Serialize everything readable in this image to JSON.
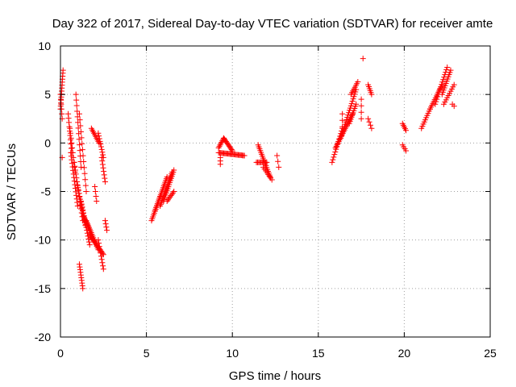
{
  "chart_data": {
    "type": "scatter",
    "title": "Day 322 of 2017, Sidereal Day-to-day VTEC variation (SDTVAR) for receiver amte",
    "xlabel": "GPS time / hours",
    "ylabel": "SDTVAR / TECUs",
    "xlim": [
      0,
      25
    ],
    "ylim": [
      -20,
      10
    ],
    "xticks": [
      "0",
      "5",
      "10",
      "15",
      "20",
      "25"
    ],
    "yticks": [
      "10",
      "5",
      "0",
      "-5",
      "-10",
      "-15",
      "-20"
    ],
    "grid": true,
    "marker": "+",
    "color": "#ff0000",
    "segments": [
      {
        "x0": 0.0,
        "y0": 3.5,
        "x1": 0.15,
        "y1": 7.5,
        "n": 14
      },
      {
        "x0": 0.0,
        "y0": 5.0,
        "x1": 0.1,
        "y1": 2.5,
        "n": 6
      },
      {
        "x0": 0.1,
        "y0": -1.5,
        "x1": 0.1,
        "y1": -1.5,
        "n": 1
      },
      {
        "x0": 0.45,
        "y0": 3.0,
        "x1": 0.65,
        "y1": -1.0,
        "n": 10
      },
      {
        "x0": 0.55,
        "y0": 1.5,
        "x1": 0.85,
        "y1": -3.0,
        "n": 10
      },
      {
        "x0": 0.6,
        "y0": -1.0,
        "x1": 1.0,
        "y1": -6.5,
        "n": 16
      },
      {
        "x0": 0.8,
        "y0": -2.0,
        "x1": 1.3,
        "y1": -8.0,
        "n": 16
      },
      {
        "x0": 0.9,
        "y0": 5.0,
        "x1": 1.2,
        "y1": -2.5,
        "n": 14
      },
      {
        "x0": 1.1,
        "y0": 3.0,
        "x1": 1.5,
        "y1": -5.0,
        "n": 14
      },
      {
        "x0": 0.95,
        "y0": -4.0,
        "x1": 1.45,
        "y1": -8.5,
        "n": 16
      },
      {
        "x0": 1.2,
        "y0": -6.0,
        "x1": 1.7,
        "y1": -10.5,
        "n": 16
      },
      {
        "x0": 1.35,
        "y0": -7.5,
        "x1": 1.9,
        "y1": -10.0,
        "n": 14
      },
      {
        "x0": 1.1,
        "y0": -12.5,
        "x1": 1.3,
        "y1": -15.0,
        "n": 10
      },
      {
        "x0": 1.5,
        "y0": -8.0,
        "x1": 2.2,
        "y1": -11.0,
        "n": 18
      },
      {
        "x0": 1.7,
        "y0": -9.5,
        "x1": 2.5,
        "y1": -11.5,
        "n": 18
      },
      {
        "x0": 1.8,
        "y0": 1.5,
        "x1": 2.25,
        "y1": 0.0,
        "n": 10
      },
      {
        "x0": 2.2,
        "y0": 1.0,
        "x1": 2.5,
        "y1": -1.5,
        "n": 10
      },
      {
        "x0": 2.4,
        "y0": -1.5,
        "x1": 2.6,
        "y1": -4.0,
        "n": 8
      },
      {
        "x0": 2.2,
        "y0": -10.0,
        "x1": 2.5,
        "y1": -13.0,
        "n": 10
      },
      {
        "x0": 2.0,
        "y0": -4.5,
        "x1": 2.1,
        "y1": -6.0,
        "n": 4
      },
      {
        "x0": 2.6,
        "y0": -8.0,
        "x1": 2.7,
        "y1": -9.0,
        "n": 4
      },
      {
        "x0": 5.3,
        "y0": -8.0,
        "x1": 5.8,
        "y1": -5.5,
        "n": 14
      },
      {
        "x0": 5.5,
        "y0": -7.0,
        "x1": 6.2,
        "y1": -3.5,
        "n": 20
      },
      {
        "x0": 5.8,
        "y0": -6.5,
        "x1": 6.5,
        "y1": -3.0,
        "n": 20
      },
      {
        "x0": 6.0,
        "y0": -6.0,
        "x1": 6.6,
        "y1": -2.8,
        "n": 16
      },
      {
        "x0": 6.2,
        "y0": -6.0,
        "x1": 6.6,
        "y1": -5.0,
        "n": 8
      },
      {
        "x0": 9.2,
        "y0": -0.5,
        "x1": 9.5,
        "y1": 0.5,
        "n": 8
      },
      {
        "x0": 9.5,
        "y0": 0.5,
        "x1": 10.0,
        "y1": -0.8,
        "n": 12
      },
      {
        "x0": 9.2,
        "y0": -1.0,
        "x1": 10.7,
        "y1": -1.3,
        "n": 26
      },
      {
        "x0": 9.3,
        "y0": -1.5,
        "x1": 9.3,
        "y1": -2.2,
        "n": 3
      },
      {
        "x0": 11.5,
        "y0": -0.2,
        "x1": 12.2,
        "y1": -3.5,
        "n": 18
      },
      {
        "x0": 11.4,
        "y0": -2.0,
        "x1": 12.0,
        "y1": -2.0,
        "n": 10
      },
      {
        "x0": 11.8,
        "y0": -2.5,
        "x1": 12.3,
        "y1": -3.8,
        "n": 8
      },
      {
        "x0": 12.6,
        "y0": -1.3,
        "x1": 12.7,
        "y1": -2.5,
        "n": 3
      },
      {
        "x0": 15.8,
        "y0": -2.0,
        "x1": 16.4,
        "y1": 1.5,
        "n": 14
      },
      {
        "x0": 16.0,
        "y0": -0.5,
        "x1": 17.0,
        "y1": 3.0,
        "n": 22
      },
      {
        "x0": 16.3,
        "y0": 0.5,
        "x1": 17.2,
        "y1": 5.5,
        "n": 22
      },
      {
        "x0": 16.8,
        "y0": 2.0,
        "x1": 17.2,
        "y1": 4.0,
        "n": 10
      },
      {
        "x0": 16.9,
        "y0": 5.0,
        "x1": 17.3,
        "y1": 6.3,
        "n": 8
      },
      {
        "x0": 16.4,
        "y0": 3.0,
        "x1": 16.4,
        "y1": 1.0,
        "n": 4
      },
      {
        "x0": 17.5,
        "y0": 4.5,
        "x1": 17.5,
        "y1": 2.5,
        "n": 4
      },
      {
        "x0": 17.6,
        "y0": 8.7,
        "x1": 17.6,
        "y1": 8.7,
        "n": 1
      },
      {
        "x0": 17.9,
        "y0": 6.0,
        "x1": 18.1,
        "y1": 5.0,
        "n": 6
      },
      {
        "x0": 17.9,
        "y0": 2.5,
        "x1": 18.1,
        "y1": 1.5,
        "n": 4
      },
      {
        "x0": 19.9,
        "y0": 2.0,
        "x1": 20.1,
        "y1": 1.3,
        "n": 5
      },
      {
        "x0": 19.9,
        "y0": -0.2,
        "x1": 20.1,
        "y1": -0.8,
        "n": 4
      },
      {
        "x0": 21.0,
        "y0": 1.5,
        "x1": 21.5,
        "y1": 3.5,
        "n": 10
      },
      {
        "x0": 21.5,
        "y0": 3.5,
        "x1": 22.2,
        "y1": 6.0,
        "n": 14
      },
      {
        "x0": 21.8,
        "y0": 4.0,
        "x1": 22.5,
        "y1": 7.8,
        "n": 16
      },
      {
        "x0": 22.2,
        "y0": 5.0,
        "x1": 22.7,
        "y1": 7.5,
        "n": 12
      },
      {
        "x0": 22.3,
        "y0": 4.0,
        "x1": 22.9,
        "y1": 6.0,
        "n": 10
      },
      {
        "x0": 22.8,
        "y0": 4.0,
        "x1": 22.9,
        "y1": 3.8,
        "n": 2
      }
    ]
  }
}
